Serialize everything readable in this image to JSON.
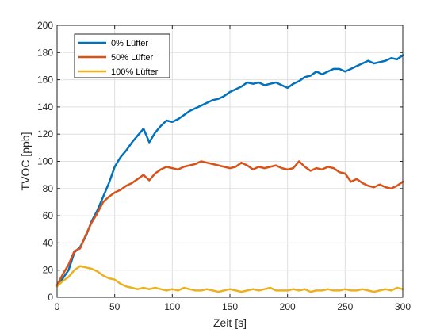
{
  "chart_data": {
    "type": "line",
    "xlabel": "Zeit [s]",
    "ylabel": "TVOC [ppb]",
    "xlim": [
      0,
      300
    ],
    "ylim": [
      0,
      200
    ],
    "xticks": [
      0,
      50,
      100,
      150,
      200,
      250,
      300
    ],
    "yticks": [
      0,
      20,
      40,
      60,
      80,
      100,
      120,
      140,
      160,
      180,
      200
    ],
    "grid": true,
    "legend_position": "top-left",
    "x": [
      0,
      5,
      10,
      15,
      20,
      25,
      30,
      35,
      40,
      45,
      50,
      55,
      60,
      65,
      70,
      75,
      80,
      85,
      90,
      95,
      100,
      105,
      110,
      115,
      120,
      125,
      130,
      135,
      140,
      145,
      150,
      155,
      160,
      165,
      170,
      175,
      180,
      185,
      190,
      195,
      200,
      205,
      210,
      215,
      220,
      225,
      230,
      235,
      240,
      245,
      250,
      255,
      260,
      265,
      270,
      275,
      280,
      285,
      290,
      295,
      300
    ],
    "series": [
      {
        "name": "0% Lüfter",
        "color": "#0072BD",
        "values": [
          9,
          14,
          20,
          33,
          37,
          45,
          56,
          64,
          74,
          84,
          96,
          103,
          108,
          114,
          119,
          124,
          114,
          121,
          126,
          130,
          129,
          131,
          134,
          137,
          139,
          141,
          143,
          145,
          146,
          148,
          151,
          153,
          155,
          158,
          157,
          158,
          156,
          157,
          158,
          156,
          154,
          157,
          159,
          162,
          163,
          166,
          164,
          166,
          168,
          168,
          166,
          168,
          170,
          172,
          174,
          172,
          173,
          174,
          176,
          175,
          178
        ]
      },
      {
        "name": "50% Lüfter",
        "color": "#D95319",
        "values": [
          9,
          17,
          24,
          34,
          36,
          46,
          55,
          62,
          70,
          74,
          77,
          79,
          82,
          84,
          87,
          90,
          86,
          91,
          94,
          96,
          95,
          94,
          96,
          97,
          98,
          100,
          99,
          98,
          97,
          96,
          95,
          96,
          99,
          97,
          94,
          96,
          95,
          96,
          97,
          95,
          94,
          95,
          100,
          96,
          93,
          95,
          94,
          96,
          95,
          92,
          91,
          85,
          87,
          84,
          82,
          81,
          83,
          81,
          80,
          82,
          85
        ]
      },
      {
        "name": "100% Lüfter",
        "color": "#EDB120",
        "values": [
          8,
          12,
          15,
          20,
          23,
          22,
          21,
          19,
          16,
          14,
          13,
          10,
          8,
          7,
          6,
          7,
          6,
          7,
          6,
          5,
          6,
          5,
          7,
          6,
          5,
          5,
          6,
          5,
          4,
          5,
          6,
          5,
          4,
          5,
          6,
          5,
          6,
          7,
          5,
          5,
          5,
          6,
          5,
          6,
          4,
          5,
          5,
          6,
          5,
          5,
          6,
          5,
          5,
          6,
          5,
          4,
          5,
          6,
          5,
          7,
          6
        ]
      }
    ]
  }
}
